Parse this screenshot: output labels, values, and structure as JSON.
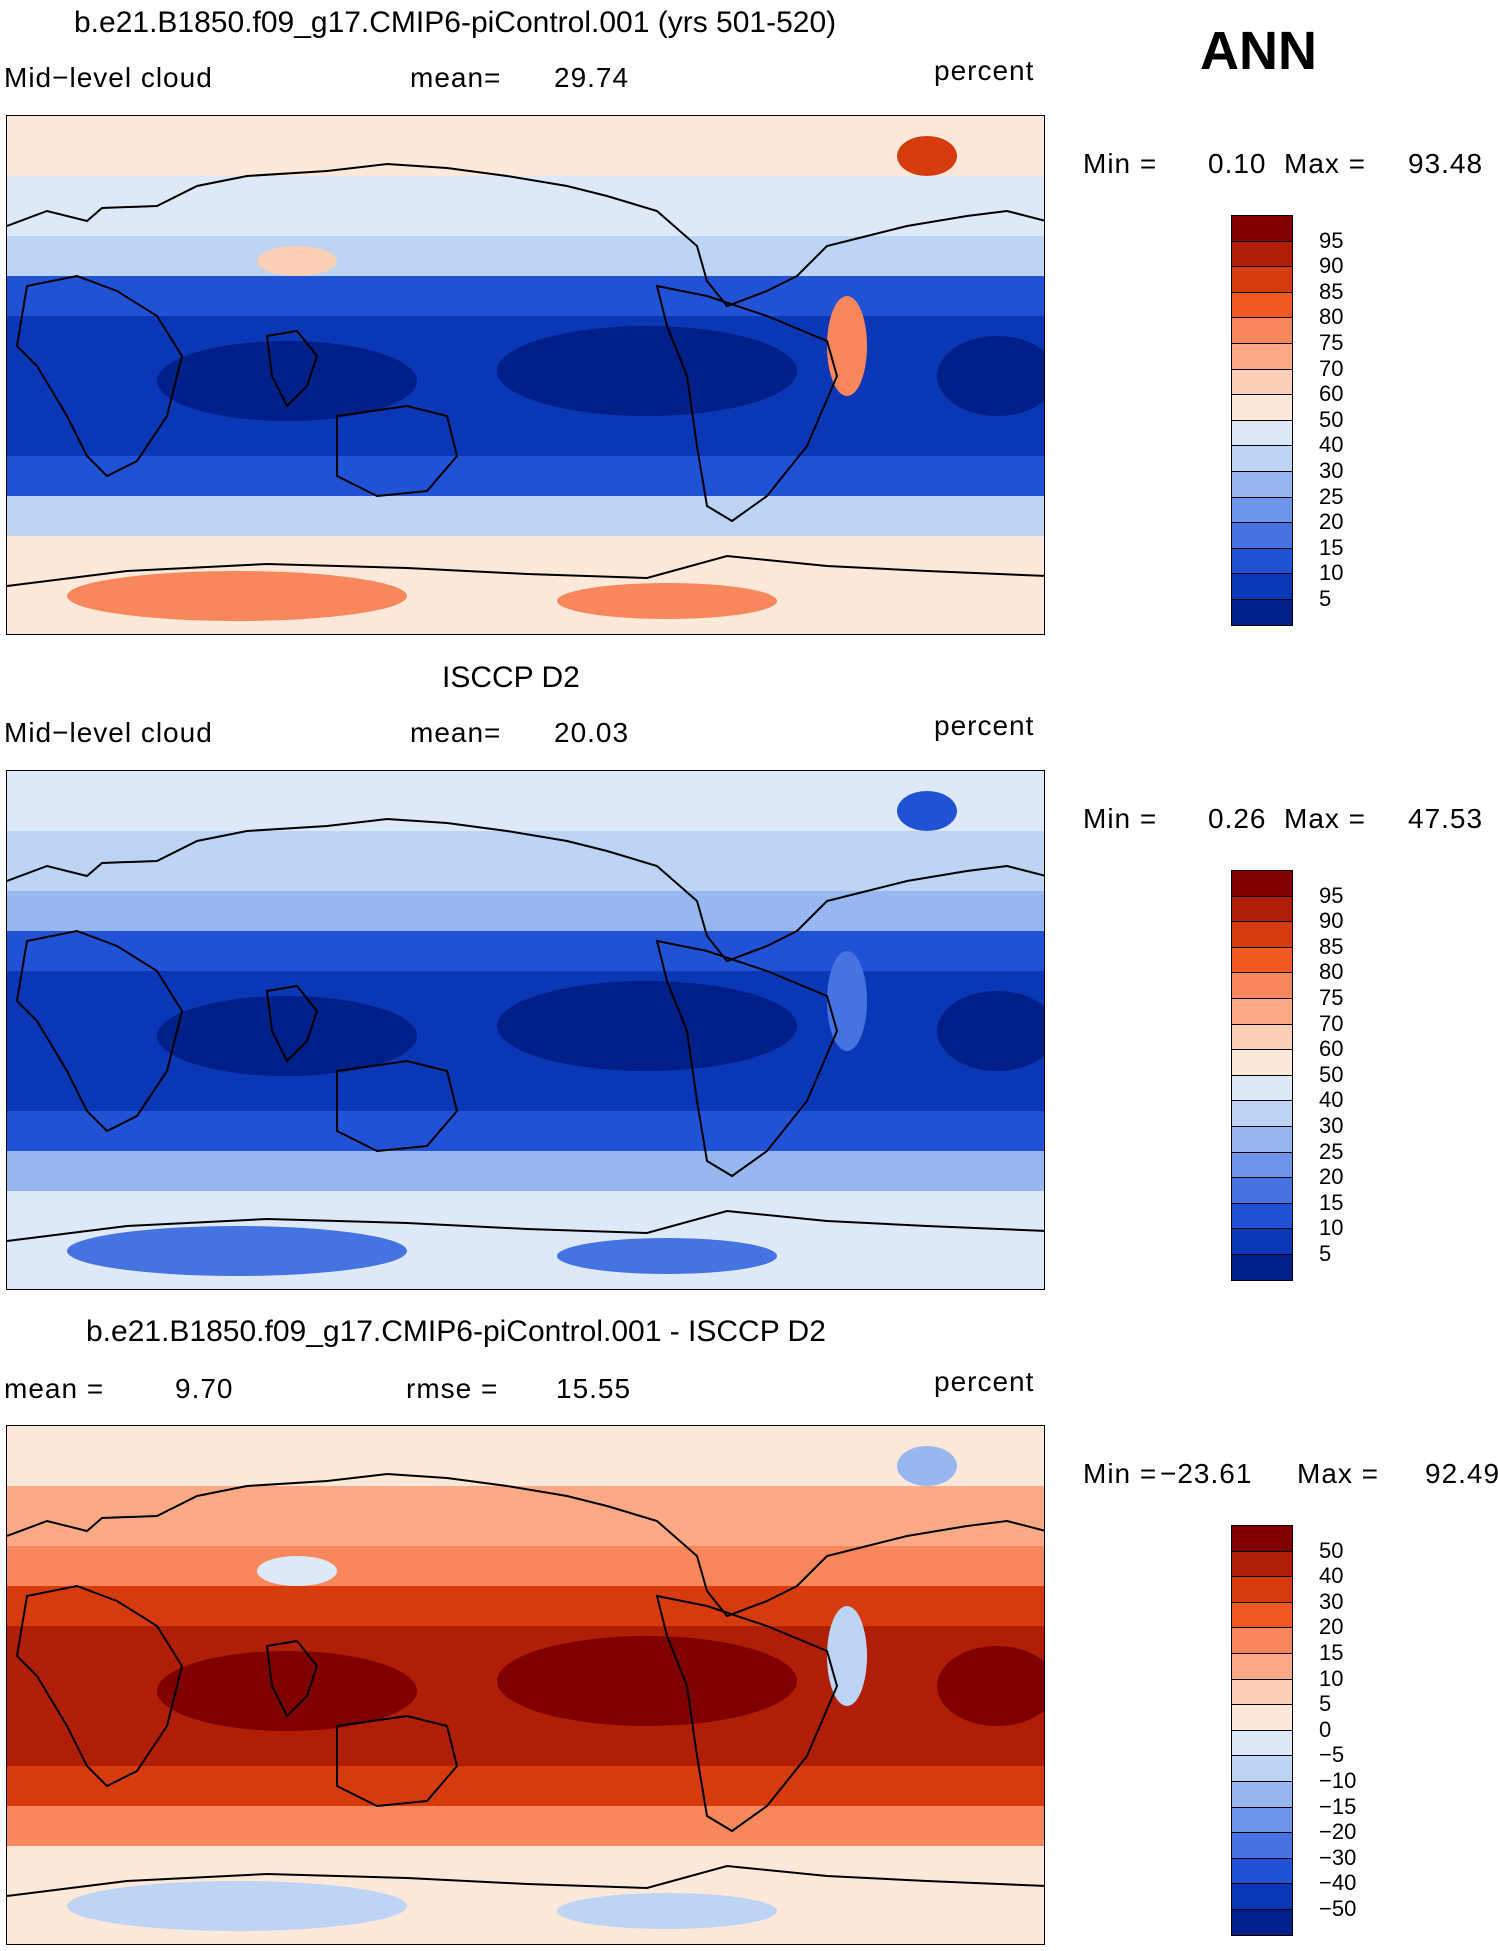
{
  "season": "ANN",
  "panels": [
    {
      "title": "b.e21.B1850.f09_g17.CMIP6-piControl.001 (yrs 501-520)",
      "left_label": "Mid−level cloud",
      "center_label": "mean=",
      "center_value": "29.74",
      "right_label": "percent",
      "min_label": "Min =",
      "min_value": "0.10",
      "max_label": "Max =",
      "max_value": "93.48",
      "colorbar_labels": [
        "95",
        "90",
        "85",
        "80",
        "75",
        "70",
        "60",
        "50",
        "40",
        "30",
        "25",
        "20",
        "15",
        "10",
        "5"
      ],
      "colorbar_colors": [
        "#800000",
        "#b01e06",
        "#d63b0e",
        "#f05a22",
        "#f8875c",
        "#fbaa85",
        "#fcd0b6",
        "#fde8d9",
        "#dde9f8",
        "#bdd4f4",
        "#97b7f0",
        "#6f95eb",
        "#4573e2",
        "#2152d6",
        "#0a37b5",
        "#001f88"
      ]
    },
    {
      "title": "ISCCP D2",
      "left_label": "Mid−level cloud",
      "center_label": "mean=",
      "center_value": "20.03",
      "right_label": "percent",
      "min_label": "Min =",
      "min_value": "0.26",
      "max_label": "Max =",
      "max_value": "47.53",
      "colorbar_labels": [
        "95",
        "90",
        "85",
        "80",
        "75",
        "70",
        "60",
        "50",
        "40",
        "30",
        "25",
        "20",
        "15",
        "10",
        "5"
      ],
      "colorbar_colors": [
        "#800000",
        "#b01e06",
        "#d63b0e",
        "#f05a22",
        "#f8875c",
        "#fbaa85",
        "#fcd0b6",
        "#fde8d9",
        "#dde9f8",
        "#bdd4f4",
        "#97b7f0",
        "#6f95eb",
        "#4573e2",
        "#2152d6",
        "#0a37b5",
        "#001f88"
      ]
    },
    {
      "title": "b.e21.B1850.f09_g17.CMIP6-piControl.001 - ISCCP D2",
      "left_label": "mean =",
      "left_value": "9.70",
      "center_label": "rmse =",
      "center_value": "15.55",
      "right_label": "percent",
      "min_label": "Min =",
      "min_value": "−23.61",
      "max_label": "Max =",
      "max_value": "92.49",
      "colorbar_labels": [
        "50",
        "40",
        "30",
        "20",
        "15",
        "10",
        "5",
        "0",
        "−5",
        "−10",
        "−15",
        "−20",
        "−30",
        "−40",
        "−50"
      ],
      "colorbar_colors": [
        "#800000",
        "#b01e06",
        "#d63b0e",
        "#f05a22",
        "#f8875c",
        "#fbaa85",
        "#fcd0b6",
        "#fde8d9",
        "#dde9f8",
        "#bdd4f4",
        "#97b7f0",
        "#6f95eb",
        "#4573e2",
        "#2152d6",
        "#0a37b5",
        "#001f88"
      ]
    }
  ],
  "map_colors": {
    "p1": {
      "bg": "#6f95eb",
      "deep": "#001f88",
      "dark": "#0a37b5",
      "mid": "#2152d6",
      "light": "#bdd4f4",
      "pale": "#dde9f8",
      "warm": "#fde8d9",
      "peach": "#fcd0b6",
      "salmon": "#f8875c",
      "red": "#d63b0e",
      "dred": "#b01e06"
    },
    "p2": {
      "bg": "#6f95eb",
      "deep": "#001f88",
      "dark": "#0a37b5",
      "mid": "#2152d6",
      "light": "#97b7f0",
      "pale": "#bdd4f4",
      "warm": "#dde9f8",
      "peach": "#97b7f0",
      "salmon": "#4573e2",
      "red": "#2152d6",
      "dred": "#0a37b5"
    },
    "p3": {
      "bg": "#fcd0b6",
      "deep": "#800000",
      "dark": "#b01e06",
      "mid": "#d63b0e",
      "light": "#f8875c",
      "pale": "#fbaa85",
      "warm": "#fde8d9",
      "peach": "#dde9f8",
      "salmon": "#bdd4f4",
      "red": "#97b7f0",
      "dred": "#6f95eb"
    }
  }
}
